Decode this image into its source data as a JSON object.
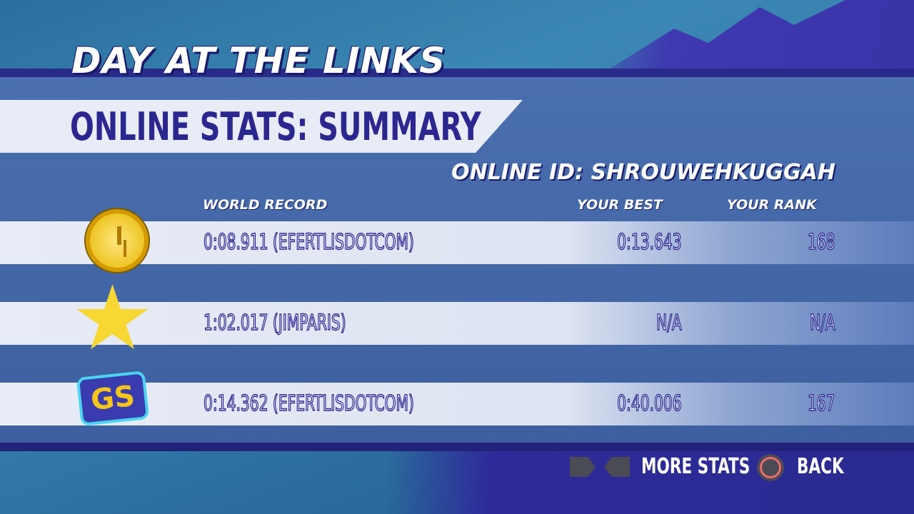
{
  "game_title": "DAY AT THE LINKS",
  "screen_title": "ONLINE STATS: SUMMARY",
  "online_id": "ONLINE ID: SHROUWEHKUGGAH",
  "headers": {
    "world_record": "WORLD RECORD",
    "your_best": "YOUR BEST",
    "your_rank": "YOUR RANK"
  },
  "rows": [
    {
      "icon": "clock-icon",
      "world_record": "0:08.911 (EFERTLISDOTCOM)",
      "your_best": "0:13.643",
      "your_rank": "168"
    },
    {
      "icon": "star-icon",
      "world_record": "1:02.017 (JIMPARIS)",
      "your_best": "N/A",
      "your_rank": "N/A"
    },
    {
      "icon": "gs-icon",
      "icon_text": "GS",
      "world_record": "0:14.362 (EFERTLISDOTCOM)",
      "your_best": "0:40.006",
      "your_rank": "167"
    }
  ],
  "footer": {
    "more_stats": "MORE STATS",
    "back": "BACK"
  }
}
